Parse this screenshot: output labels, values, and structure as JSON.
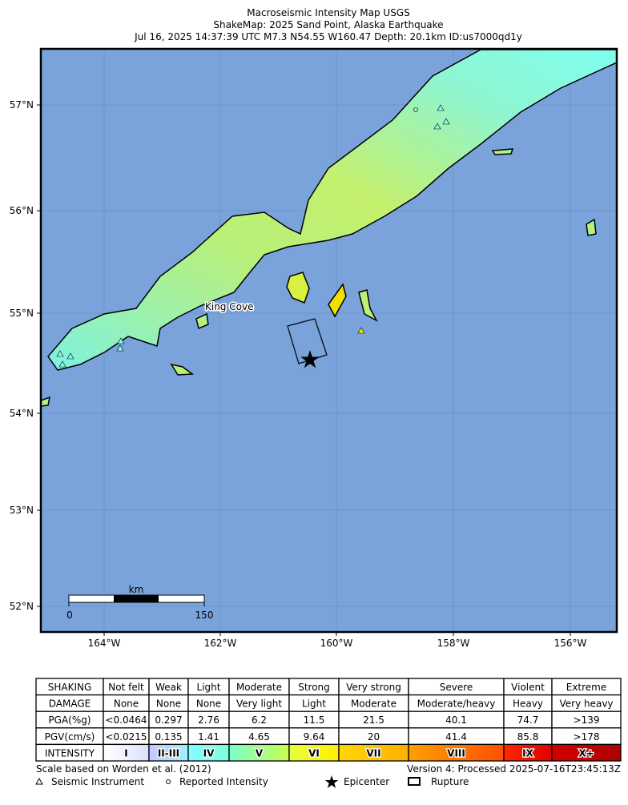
{
  "header": {
    "title": "Macroseismic Intensity Map USGS",
    "subtitle": "ShakeMap: 2025 Sand Point, Alaska Earthquake",
    "details": "Jul 16, 2025 14:37:39 UTC M7.3 N54.55 W160.47 Depth: 20.1km ID:us7000qd1y"
  },
  "map": {
    "lat_labels": [
      "57°N",
      "56°N",
      "55°N",
      "54°N",
      "53°N",
      "52°N"
    ],
    "lon_labels": [
      "164°W",
      "162°W",
      "160°W",
      "158°W",
      "156°W"
    ],
    "place": "King Cove",
    "scale": {
      "unit": "km",
      "start": "0",
      "end": "150"
    }
  },
  "table": {
    "rows": [
      [
        "SHAKING",
        "Not felt",
        "Weak",
        "Light",
        "Moderate",
        "Strong",
        "Very strong",
        "Severe",
        "Violent",
        "Extreme"
      ],
      [
        "DAMAGE",
        "None",
        "None",
        "None",
        "Very light",
        "Light",
        "Moderate",
        "Moderate/heavy",
        "Heavy",
        "Very heavy"
      ],
      [
        "PGA(%g)",
        "<0.0464",
        "0.297",
        "2.76",
        "6.2",
        "11.5",
        "21.5",
        "40.1",
        "74.7",
        ">139"
      ],
      [
        "PGV(cm/s)",
        "<0.0215",
        "0.135",
        "1.41",
        "4.65",
        "9.64",
        "20",
        "41.4",
        "85.8",
        ">178"
      ],
      [
        "INTENSITY",
        "I",
        "II-III",
        "IV",
        "V",
        "VI",
        "VII",
        "VIII",
        "IX",
        "X+"
      ]
    ]
  },
  "footer": {
    "scale_note": "Scale based on Worden et al. (2012)",
    "version": "Version 4: Processed 2025-07-16T23:45:13Z",
    "legend": [
      "Seismic Instrument",
      "Reported Intensity",
      "Epicenter",
      "Rupture"
    ]
  }
}
